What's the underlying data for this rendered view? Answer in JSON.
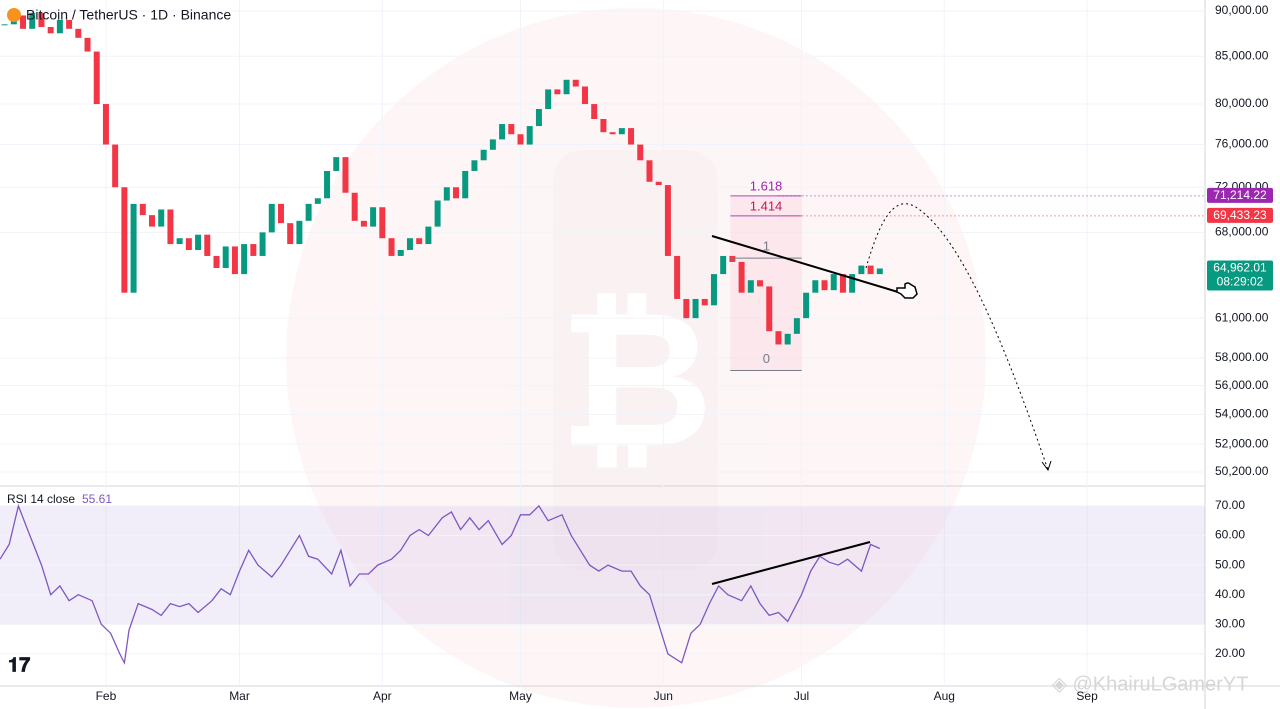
{
  "chart_data": [
    {
      "type": "candlestick",
      "title": "Bitcoin / TetherUS · 1D · Binance",
      "x": [
        10,
        12,
        14,
        16,
        18,
        20,
        22,
        24,
        26,
        28,
        30,
        32,
        34,
        36,
        38,
        40,
        42,
        44,
        46,
        48,
        50,
        52,
        54,
        56,
        58,
        60,
        62,
        64,
        66,
        68,
        70,
        72,
        74,
        76,
        78,
        80,
        82,
        84,
        86,
        88,
        90,
        92,
        94,
        96,
        98,
        100,
        102,
        104,
        106,
        108,
        110,
        112,
        114,
        116,
        118,
        120,
        122,
        124,
        126,
        128,
        130,
        132,
        134,
        136,
        138,
        140,
        142,
        144,
        146,
        148,
        150,
        152,
        154,
        156,
        158,
        160,
        162,
        164,
        166,
        168,
        170,
        172,
        174,
        176,
        178,
        180,
        182,
        184,
        186,
        188,
        190,
        192,
        194,
        196,
        198,
        200
      ],
      "close": [
        88500,
        89500,
        88000,
        89800,
        88200,
        87500,
        89000,
        88000,
        87000,
        85500,
        80000,
        76000,
        72000,
        63000,
        70500,
        69500,
        68500,
        70000,
        67000,
        67500,
        66500,
        67800,
        66000,
        65000,
        66800,
        64500,
        67000,
        66000,
        68000,
        70500,
        68800,
        67000,
        69000,
        70500,
        71000,
        73500,
        74800,
        71500,
        69000,
        68500,
        70200,
        67500,
        66000,
        66500,
        67500,
        67000,
        68500,
        70800,
        72000,
        71000,
        73500,
        74500,
        75500,
        76500,
        78000,
        77000,
        76000,
        77800,
        79500,
        81500,
        81000,
        82500,
        81800,
        80000,
        78500,
        77200,
        77000,
        77600,
        76000,
        74500,
        72500,
        72200,
        66000,
        62500,
        61000,
        62500,
        62000,
        64500,
        66000,
        65500,
        63000,
        64000,
        63500,
        60000,
        59000,
        59800,
        61000,
        63000,
        64000,
        63200,
        64500,
        63000,
        64500,
        65200,
        64500,
        64962.01
      ],
      "up_color": "#089981",
      "down_color": "#f23645",
      "xlim": [
        9,
        270.6
      ],
      "xticks": [
        {
          "value": 32,
          "label": "Feb"
        },
        {
          "value": 61,
          "label": "Mar"
        },
        {
          "value": 92,
          "label": "Apr"
        },
        {
          "value": 122,
          "label": "May"
        },
        {
          "value": 153,
          "label": "Jun"
        },
        {
          "value": 183,
          "label": "Jul"
        },
        {
          "value": 214,
          "label": "Aug"
        },
        {
          "value": 245,
          "label": "Sep"
        }
      ],
      "ylim": [
        49380,
        91270
      ],
      "log_scale": true,
      "yticks": [
        {
          "value": 90000,
          "label": "90,000.00"
        },
        {
          "value": 85000,
          "label": "85,000.00"
        },
        {
          "value": 80000,
          "label": "80,000.00"
        },
        {
          "value": 76000,
          "label": "76,000.00"
        },
        {
          "value": 72000,
          "label": "72,000.00"
        },
        {
          "value": 68000,
          "label": "68,000.00"
        },
        {
          "value": 61000,
          "label": "61,000.00"
        },
        {
          "value": 58000,
          "label": "58,000.00"
        },
        {
          "value": 56000,
          "label": "56,000.00"
        },
        {
          "value": 54000,
          "label": "54,000.00"
        },
        {
          "value": 52000,
          "label": "52,000.00"
        },
        {
          "value": 50200,
          "label": "50,200.00"
        }
      ],
      "grid": true,
      "fib": {
        "start": 57089,
        "end": 65819,
        "levels": [
          0,
          1,
          1.414,
          1.618
        ]
      },
      "price_labels": [
        {
          "value": 71214.22,
          "label": "71,214.22",
          "color": "#9c27b0"
        },
        {
          "value": 69433.23,
          "label": "69,433.23",
          "color": "#f23645"
        },
        {
          "value": 64962.01,
          "label": "64,962.01",
          "color": "#089981"
        }
      ],
      "countdown": "08:29:02"
    },
    {
      "type": "line",
      "title": "RSI 14 close",
      "series": [
        {
          "name": "RSI",
          "color": "#7e57c2",
          "x": [
            9,
            11,
            13,
            15,
            18,
            20,
            22,
            24,
            26,
            29,
            31,
            33,
            35,
            36,
            37,
            39,
            42,
            44,
            46,
            48,
            50,
            52,
            55,
            57,
            59,
            61,
            63,
            65,
            68,
            70,
            72,
            74,
            76,
            78,
            81,
            83,
            85,
            87,
            89,
            91,
            94,
            96,
            98,
            100,
            102,
            105,
            107,
            109,
            111,
            113,
            115,
            118,
            120,
            122,
            124,
            126,
            128,
            131,
            133,
            135,
            137,
            139,
            141,
            144,
            146,
            148,
            150,
            152,
            154,
            157,
            159,
            161,
            163,
            165,
            167,
            170,
            172,
            174,
            176,
            178,
            180,
            183,
            185,
            187,
            189,
            191,
            193,
            196,
            198,
            200
          ],
          "values": [
            52,
            57,
            70,
            62,
            50,
            40,
            43,
            38,
            40,
            38,
            30,
            27,
            20,
            17,
            28,
            37,
            35,
            33,
            37,
            36,
            37,
            34,
            38,
            42,
            40,
            48,
            55,
            50,
            46,
            50,
            55,
            60,
            53,
            52,
            47,
            55,
            43,
            47,
            47,
            50,
            52,
            55,
            60,
            62,
            60,
            66,
            68,
            62,
            66,
            62,
            65,
            57,
            60,
            67,
            67,
            70,
            65,
            67,
            60,
            55,
            50,
            48,
            50,
            48,
            48,
            43,
            40,
            30,
            20,
            17,
            27,
            30,
            37,
            43,
            40,
            38,
            43,
            37,
            33,
            34,
            31,
            40,
            48,
            53,
            51,
            50,
            52,
            48,
            57,
            55.61
          ]
        }
      ],
      "band": [
        30,
        70
      ],
      "band_color": "#7e57c2",
      "ylim": [
        9.5,
        76.4
      ],
      "yticks": [
        {
          "value": 70,
          "label": "70.00"
        },
        {
          "value": 60,
          "label": "60.00"
        },
        {
          "value": 50,
          "label": "50.00"
        },
        {
          "value": 40,
          "label": "40.00"
        },
        {
          "value": 30,
          "label": "30.00"
        },
        {
          "value": 20,
          "label": "20.00"
        }
      ]
    }
  ]
}
